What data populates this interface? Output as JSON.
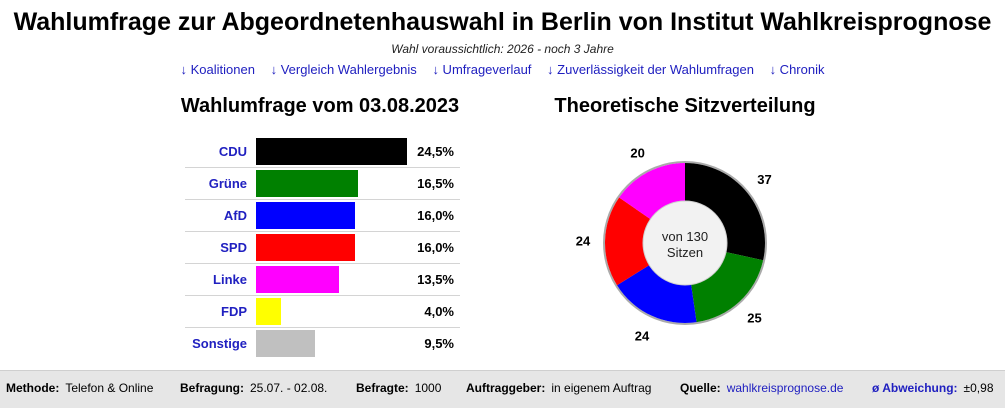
{
  "title": "Wahlumfrage zur Abgeordnetenhauswahl in Berlin von Institut Wahlkreisprognose",
  "subtitle": "Wahl voraussichtlich: 2026 - noch 3 Jahre",
  "nav": [
    "↓ Koalitionen",
    "↓ Vergleich Wahlergebnis",
    "↓ Umfrageverlauf",
    "↓ Zuverlässigkeit der Wahlumfragen",
    "↓ Chronik"
  ],
  "poll": {
    "title": "Wahlumfrage vom 03.08.2023",
    "rows": [
      {
        "party": "CDU",
        "value": "24,5%",
        "color": "#000000"
      },
      {
        "party": "Grüne",
        "value": "16,5%",
        "color": "#008000"
      },
      {
        "party": "AfD",
        "value": "16,0%",
        "color": "#0000ff"
      },
      {
        "party": "SPD",
        "value": "16,0%",
        "color": "#ff0000"
      },
      {
        "party": "Linke",
        "value": "13,5%",
        "color": "#ff00ff"
      },
      {
        "party": "FDP",
        "value": "4,0%",
        "color": "#ffff00"
      },
      {
        "party": "Sonstige",
        "value": "9,5%",
        "color": "#c0c0c0"
      }
    ]
  },
  "chart_data": [
    {
      "type": "bar",
      "title": "Wahlumfrage vom 03.08.2023",
      "categories": [
        "CDU",
        "Grüne",
        "AfD",
        "SPD",
        "Linke",
        "FDP",
        "Sonstige"
      ],
      "values": [
        24.5,
        16.5,
        16.0,
        16.0,
        13.5,
        4.0,
        9.5
      ],
      "colors": [
        "#000000",
        "#008000",
        "#0000ff",
        "#ff0000",
        "#ff00ff",
        "#ffff00",
        "#c0c0c0"
      ]
    },
    {
      "type": "pie",
      "title": "Theoretische Sitzverteilung",
      "center_label": [
        "von 130",
        "Sitzen"
      ],
      "categories": [
        "CDU",
        "Grüne",
        "AfD",
        "SPD",
        "Linke"
      ],
      "values": [
        37,
        25,
        24,
        24,
        20
      ],
      "colors": [
        "#000000",
        "#008000",
        "#0000ff",
        "#ff0000",
        "#ff00ff"
      ]
    }
  ],
  "seats": {
    "title": "Theoretische Sitzverteilung",
    "center_line1": "von 130",
    "center_line2": "Sitzen"
  },
  "footer": {
    "method_label": "Methode:",
    "method_value": "Telefon & Online",
    "survey_label": "Befragung:",
    "survey_value": "25.07. - 02.08.",
    "respondents_label": "Befragte:",
    "respondents_value": "1000",
    "client_label": "Auftraggeber:",
    "client_value": "in eigenem Auftrag",
    "source_label": "Quelle:",
    "source_value": "wahlkreisprognose.de",
    "deviation_label": "ø Abweichung:",
    "deviation_value": "±0,98"
  }
}
